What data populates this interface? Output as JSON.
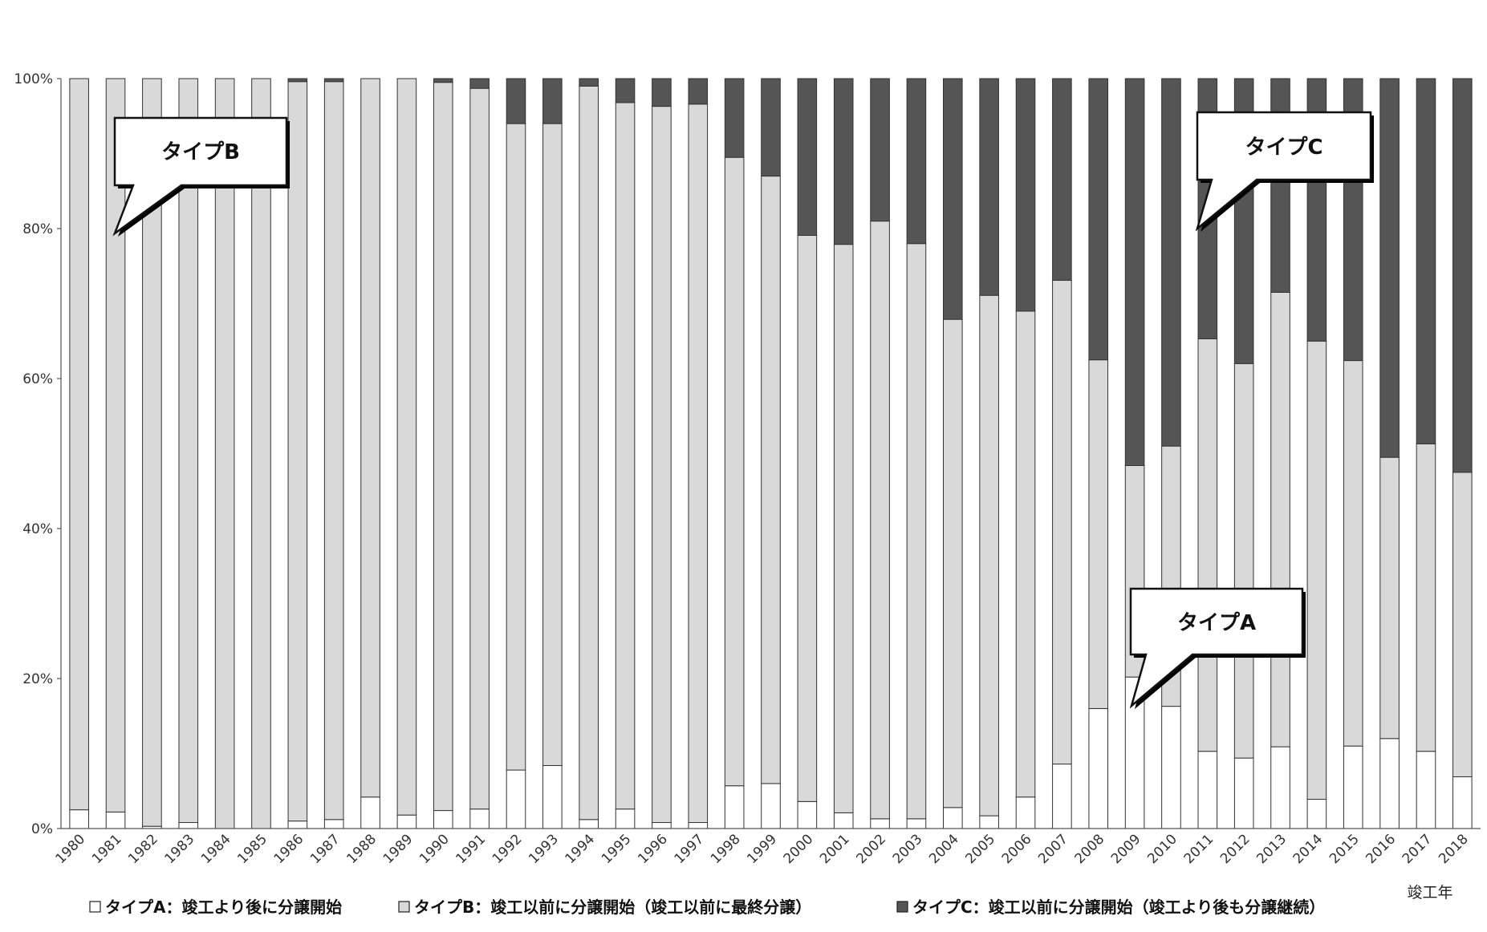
{
  "chart_data": {
    "type": "bar",
    "stacked": true,
    "normalized": true,
    "categories": [
      "1980",
      "1981",
      "1982",
      "1983",
      "1984",
      "1985",
      "1986",
      "1987",
      "1988",
      "1989",
      "1990",
      "1991",
      "1992",
      "1993",
      "1994",
      "1995",
      "1996",
      "1997",
      "1998",
      "1999",
      "2000",
      "2001",
      "2002",
      "2003",
      "2004",
      "2005",
      "2006",
      "2007",
      "2008",
      "2009",
      "2010",
      "2011",
      "2012",
      "2013",
      "2014",
      "2015",
      "2016",
      "2017",
      "2018"
    ],
    "series": [
      {
        "name": "タイプA：竣工より後に分譲開始",
        "color": "#ffffff",
        "values": [
          2.5,
          2.2,
          0.3,
          0.8,
          0,
          0,
          1.0,
          1.2,
          4.2,
          1.8,
          2.4,
          2.6,
          7.8,
          8.4,
          1.2,
          2.6,
          0.8,
          0.8,
          5.7,
          6.0,
          3.6,
          2.1,
          1.3,
          1.3,
          2.8,
          1.7,
          4.2,
          8.6,
          16.0,
          20.2,
          16.3,
          10.3,
          9.4,
          10.9,
          3.9,
          11.0,
          12.0,
          10.3,
          6.9
        ]
      },
      {
        "name": "タイプB：竣工以前に分譲開始（竣工以前に最終分譲）",
        "color": "#d9d9d9",
        "values": [
          97.5,
          97.8,
          99.7,
          99.2,
          100,
          100,
          98.6,
          98.4,
          95.8,
          98.2,
          97.1,
          96.1,
          86.2,
          85.6,
          97.8,
          94.2,
          95.5,
          95.8,
          83.8,
          81.0,
          75.5,
          75.8,
          79.7,
          76.7,
          65.1,
          69.4,
          64.8,
          64.5,
          46.5,
          28.2,
          34.7,
          55.0,
          52.6,
          60.6,
          61.1,
          51.4,
          37.5,
          41.0,
          40.6
        ]
      },
      {
        "name": "タイプC：竣工以前に分譲開始（竣工より後も分譲継続）",
        "color": "#555555",
        "values": [
          0,
          0,
          0,
          0,
          0,
          0,
          0.4,
          0.4,
          0,
          0,
          0.5,
          1.3,
          6.0,
          6.0,
          1.0,
          3.2,
          3.7,
          3.4,
          10.5,
          13.0,
          20.9,
          22.1,
          19.0,
          22.0,
          32.1,
          28.9,
          31.0,
          26.9,
          37.5,
          51.6,
          49.0,
          34.7,
          38.0,
          28.5,
          35.0,
          37.6,
          50.5,
          48.7,
          52.5
        ]
      }
    ],
    "ylim": [
      0,
      100
    ],
    "yticks": [
      "0%",
      "20%",
      "40%",
      "60%",
      "80%",
      "100%"
    ],
    "xlabel": "竣工年",
    "legend_position": "bottom",
    "grid": false
  },
  "callouts": [
    {
      "label": "タイプB"
    },
    {
      "label": "タイプC"
    },
    {
      "label": "タイプA"
    }
  ]
}
